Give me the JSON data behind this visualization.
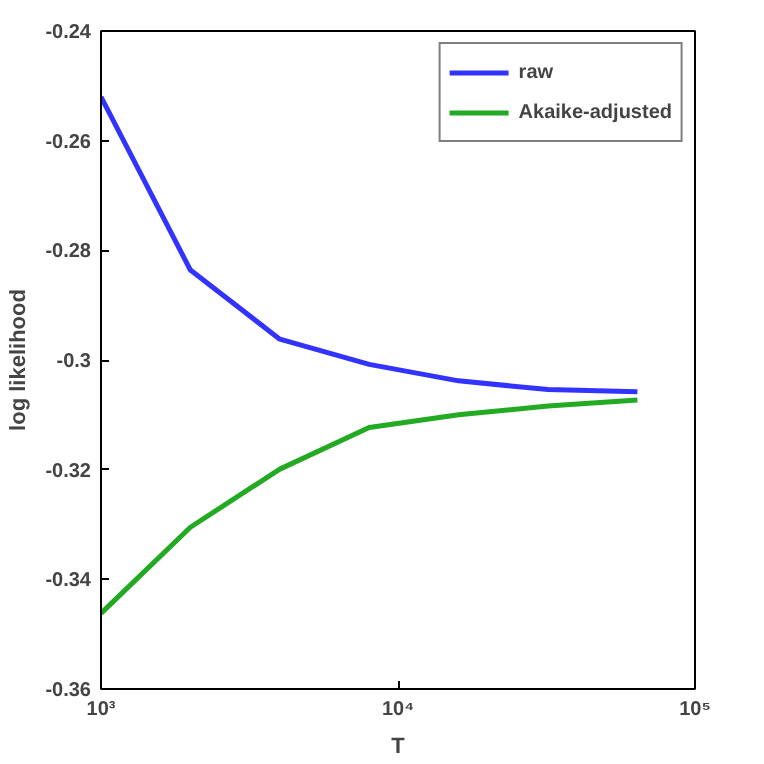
{
  "chart_data": {
    "type": "line",
    "xlabel": "T",
    "ylabel": "log likelihood",
    "log": "x",
    "x": [
      1000,
      2000,
      4000,
      8000,
      16000,
      32000,
      64000
    ],
    "series": [
      {
        "name": "raw",
        "color": "#3333ff",
        "values": [
          -0.252,
          -0.2836,
          -0.2962,
          -0.3008,
          -0.3038,
          -0.3054,
          -0.3058
        ]
      },
      {
        "name": "Akaike-adjusted",
        "color": "#22aa22",
        "values": [
          -0.3462,
          -0.3305,
          -0.3199,
          -0.3123,
          -0.31,
          -0.3084,
          -0.3073
        ]
      }
    ],
    "xlim": [
      1000,
      100000
    ],
    "ylim": [
      -0.36,
      -0.24
    ],
    "xticks": [
      {
        "value": 1000,
        "label": "10³"
      },
      {
        "value": 10000,
        "label": "10⁴"
      },
      {
        "value": 100000,
        "label": "10⁵"
      }
    ],
    "yticks": [
      -0.36,
      -0.34,
      -0.32,
      -0.3,
      -0.28,
      -0.26,
      -0.24
    ],
    "grid": false,
    "legend": "top right",
    "marker": "none",
    "line_style": "solid"
  }
}
